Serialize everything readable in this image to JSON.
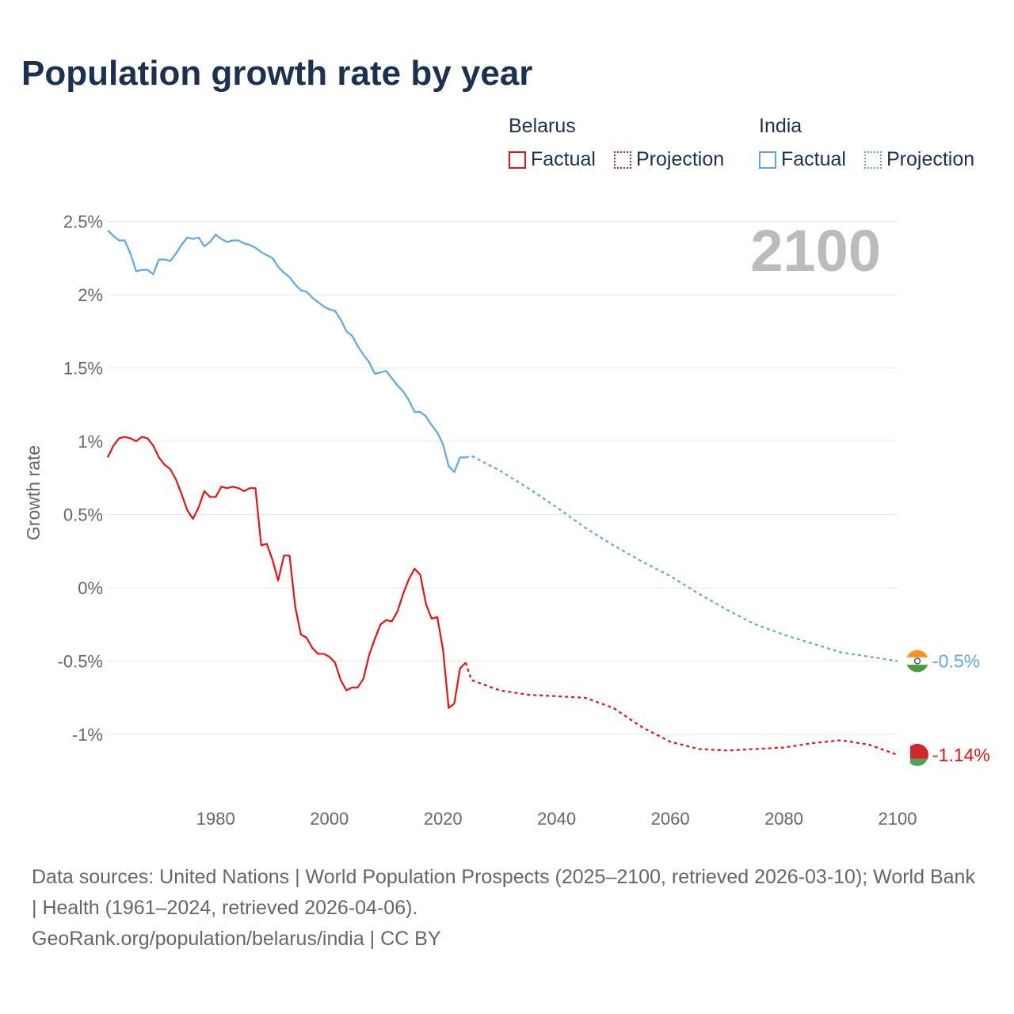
{
  "title": "Population growth rate by year",
  "legend": {
    "groups": [
      {
        "name": "Belarus",
        "color": "#ee1111",
        "factual": "Factual",
        "projection": "Projection"
      },
      {
        "name": "India",
        "color": "#5ea8e8",
        "factual": "Factual",
        "projection": "Projection"
      }
    ]
  },
  "year_label": "2100",
  "footer": {
    "sources": "Data sources: United Nations | World Population Prospects (2025–2100, retrieved 2026-03-10); World Bank | Health (1961–2024, retrieved 2026-04-06).",
    "credit": "GeoRank.org/population/belarus/india | CC BY"
  },
  "chart_data": {
    "type": "line",
    "title": "Population growth rate by year",
    "xlabel": "",
    "ylabel": "Growth rate",
    "xlim": [
      1961,
      2100
    ],
    "ylim": [
      -1.25,
      2.6
    ],
    "xticks": [
      1980,
      2000,
      2020,
      2040,
      2060,
      2080,
      2100
    ],
    "yticks": [
      {
        "v": 2.5,
        "l": "2.5%"
      },
      {
        "v": 2,
        "l": "2%"
      },
      {
        "v": 1.5,
        "l": "1.5%"
      },
      {
        "v": 1,
        "l": "1%"
      },
      {
        "v": 0.5,
        "l": "0.5%"
      },
      {
        "v": 0,
        "l": "0%"
      },
      {
        "v": -0.5,
        "l": "-0.5%"
      },
      {
        "v": -1,
        "l": "-1%"
      }
    ],
    "grid": true,
    "series": [
      {
        "name": "India",
        "color": "#5ea8e8",
        "end_label": "-0.5%",
        "factual_start": 1961,
        "factual": [
          2.44,
          2.4,
          2.37,
          2.37,
          2.28,
          2.16,
          2.17,
          2.17,
          2.14,
          2.24,
          2.24,
          2.23,
          2.28,
          2.34,
          2.39,
          2.38,
          2.39,
          2.33,
          2.36,
          2.41,
          2.38,
          2.36,
          2.37,
          2.37,
          2.35,
          2.34,
          2.32,
          2.29,
          2.27,
          2.25,
          2.19,
          2.15,
          2.12,
          2.07,
          2.03,
          2.02,
          1.98,
          1.95,
          1.92,
          1.9,
          1.89,
          1.83,
          1.75,
          1.72,
          1.65,
          1.59,
          1.54,
          1.46,
          1.47,
          1.48,
          1.43,
          1.38,
          1.34,
          1.28,
          1.2,
          1.2,
          1.17,
          1.11,
          1.06,
          0.98,
          0.83,
          0.79,
          0.89,
          0.89
        ],
        "projection": [
          [
            2024,
            0.89
          ],
          [
            2025,
            0.9
          ],
          [
            2030,
            0.8
          ],
          [
            2035,
            0.68
          ],
          [
            2040,
            0.55
          ],
          [
            2045,
            0.41
          ],
          [
            2050,
            0.29
          ],
          [
            2055,
            0.18
          ],
          [
            2060,
            0.08
          ],
          [
            2065,
            -0.04
          ],
          [
            2070,
            -0.15
          ],
          [
            2075,
            -0.25
          ],
          [
            2080,
            -0.32
          ],
          [
            2085,
            -0.38
          ],
          [
            2090,
            -0.44
          ],
          [
            2095,
            -0.47
          ],
          [
            2100,
            -0.5
          ]
        ]
      },
      {
        "name": "Belarus",
        "color": "#ee1111",
        "end_label": "-1.14%",
        "factual_start": 1961,
        "factual": [
          0.89,
          0.97,
          1.02,
          1.03,
          1.02,
          1.0,
          1.03,
          1.02,
          0.97,
          0.89,
          0.84,
          0.81,
          0.74,
          0.64,
          0.53,
          0.47,
          0.55,
          0.66,
          0.62,
          0.62,
          0.69,
          0.68,
          0.69,
          0.68,
          0.66,
          0.68,
          0.68,
          0.29,
          0.3,
          0.19,
          0.05,
          0.22,
          0.22,
          -0.13,
          -0.32,
          -0.34,
          -0.41,
          -0.45,
          -0.45,
          -0.47,
          -0.51,
          -0.63,
          -0.7,
          -0.68,
          -0.68,
          -0.62,
          -0.46,
          -0.35,
          -0.25,
          -0.22,
          -0.23,
          -0.16,
          -0.04,
          0.06,
          0.13,
          0.09,
          -0.11,
          -0.21,
          -0.2,
          -0.42,
          -0.82,
          -0.79,
          -0.55,
          -0.51
        ],
        "projection": [
          [
            2024,
            -0.51
          ],
          [
            2025,
            -0.63
          ],
          [
            2030,
            -0.7
          ],
          [
            2035,
            -0.73
          ],
          [
            2040,
            -0.74
          ],
          [
            2045,
            -0.75
          ],
          [
            2050,
            -0.82
          ],
          [
            2055,
            -0.95
          ],
          [
            2060,
            -1.05
          ],
          [
            2065,
            -1.1
          ],
          [
            2070,
            -1.11
          ],
          [
            2075,
            -1.1
          ],
          [
            2080,
            -1.09
          ],
          [
            2085,
            -1.06
          ],
          [
            2090,
            -1.04
          ],
          [
            2095,
            -1.07
          ],
          [
            2100,
            -1.14
          ]
        ]
      }
    ]
  }
}
